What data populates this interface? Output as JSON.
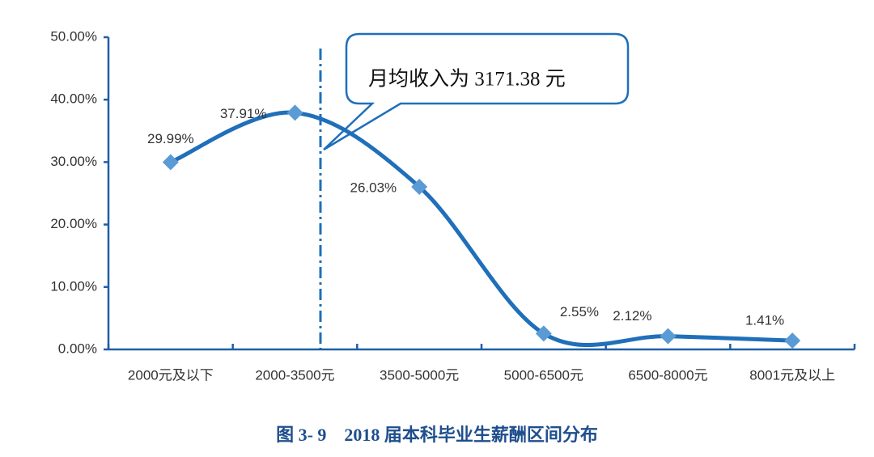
{
  "chart_data": {
    "type": "line",
    "caption": "图 3- 9　2018 届本科毕业生薪酬区间分布",
    "annotation": "月均收入为 3171.38 元",
    "categories": [
      "2000元及以下",
      "2000-3500元",
      "3500-5000元",
      "5000-6500元",
      "6500-8000元",
      "8001元及以上"
    ],
    "series": [
      {
        "color": "#1f6fba",
        "marker_color": "#5b9bd5",
        "values": [
          29.99,
          37.91,
          26.03,
          2.55,
          2.12,
          1.41
        ],
        "value_labels": [
          "29.99%",
          "37.91%",
          "26.03%",
          "2.55%",
          "2.12%",
          "1.41%"
        ]
      }
    ],
    "ylim": [
      0,
      50
    ],
    "yticks": [
      {
        "value": 0,
        "label": "0.00%"
      },
      {
        "value": 10,
        "label": "10.00%"
      },
      {
        "value": 20,
        "label": "20.00%"
      },
      {
        "value": 30,
        "label": "30.00%"
      },
      {
        "value": 40,
        "label": "40.00%"
      },
      {
        "value": 50,
        "label": "50.00%"
      }
    ],
    "smooth": true
  }
}
